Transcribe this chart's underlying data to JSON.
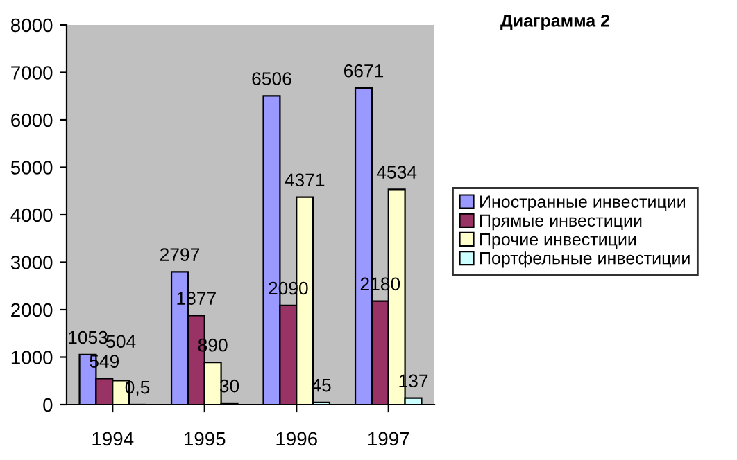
{
  "chart_data": {
    "type": "bar",
    "title": "Диаграмма 2",
    "categories": [
      "1994",
      "1995",
      "1996",
      "1997"
    ],
    "series": [
      {
        "name": "Иностранные инвестиции",
        "color": "#9999ff",
        "values": [
          1053,
          2797,
          6506,
          6671
        ],
        "value_labels": [
          "1053",
          "2797",
          "6506",
          "6671"
        ]
      },
      {
        "name": "Прямые инвестиции",
        "color": "#993366",
        "values": [
          549,
          1877,
          2090,
          2180
        ],
        "value_labels": [
          "549",
          "1877",
          "2090",
          "2180"
        ]
      },
      {
        "name": "Прочие инвестиции",
        "color": "#ffffcc",
        "values": [
          504,
          890,
          4371,
          4534
        ],
        "value_labels": [
          "504",
          "890",
          "4371",
          "4534"
        ]
      },
      {
        "name": "Портфельные инвестиции",
        "color": "#ccffff",
        "values": [
          0.5,
          30,
          45,
          137
        ],
        "value_labels": [
          "0,5",
          "30",
          "45",
          "137"
        ]
      }
    ],
    "ylim": [
      0,
      8000
    ],
    "yticks": [
      0,
      1000,
      2000,
      3000,
      4000,
      5000,
      6000,
      7000,
      8000
    ],
    "grid": false,
    "legend": "right"
  }
}
